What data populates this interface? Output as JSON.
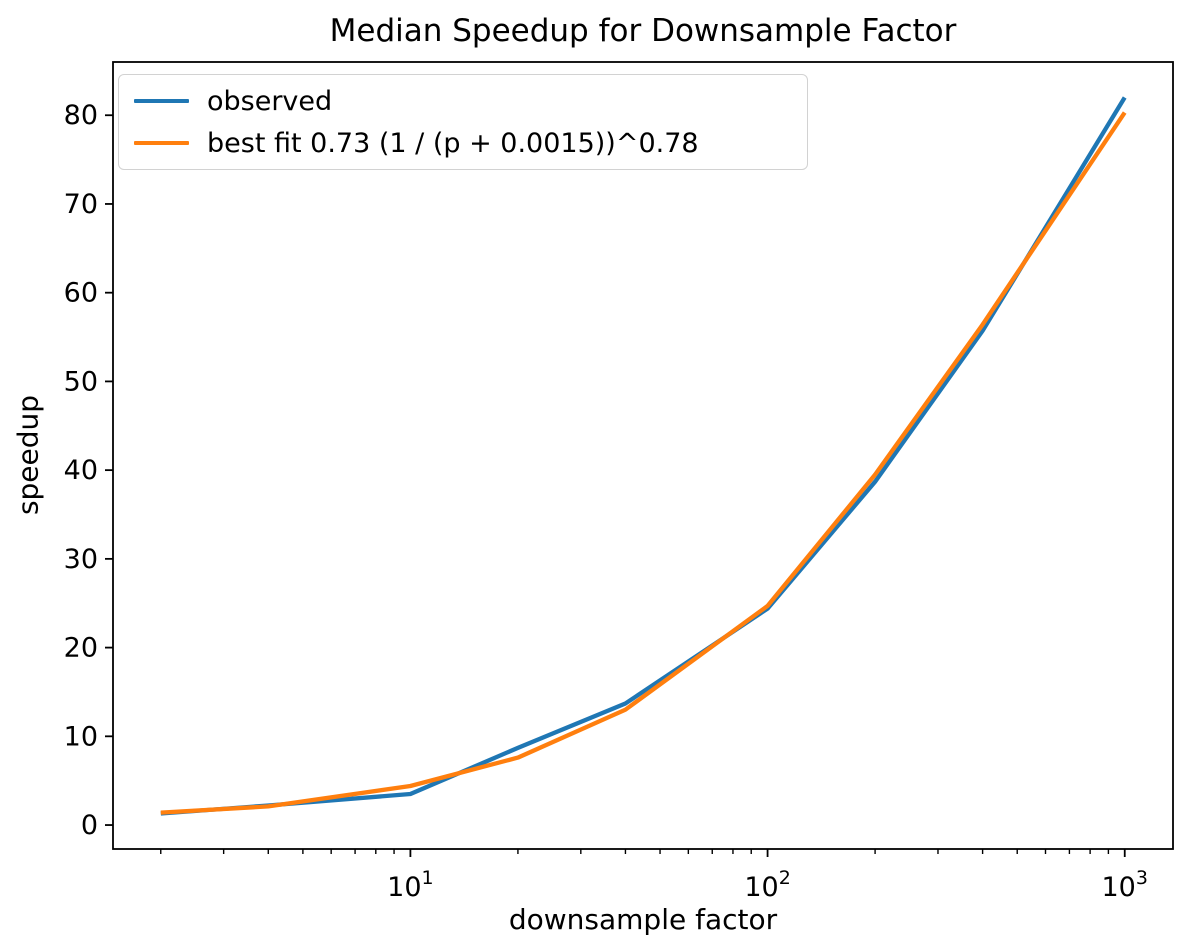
{
  "chart_data": {
    "type": "line",
    "title": "Median Speedup for Downsample Factor",
    "xlabel": "downsample factor",
    "ylabel": "speedup",
    "x_scale": "log",
    "grid": false,
    "legend_position": "upper left",
    "x": [
      2,
      4,
      10,
      20,
      40,
      100,
      200,
      400,
      1000
    ],
    "series": [
      {
        "name": "observed",
        "color": "#1f77b4",
        "values": [
          1.3,
          2.2,
          3.5,
          8.7,
          13.7,
          24.4,
          38.7,
          55.7,
          82.0
        ]
      },
      {
        "name": "best fit 0.73 (1 / (p + 0.0015))^0.78",
        "color": "#ff7f0e",
        "values": [
          1.4,
          2.1,
          4.4,
          7.6,
          13.0,
          24.7,
          39.5,
          56.4,
          80.3
        ]
      }
    ],
    "xlim": [
      1.47,
      1365
    ],
    "ylim": [
      -2.7,
      86
    ],
    "yticks": [
      0,
      10,
      20,
      30,
      40,
      50,
      60,
      70,
      80
    ],
    "xticks_major": [
      10,
      100,
      1000
    ],
    "xtick_labels": [
      "10^1",
      "10^2",
      "10^3"
    ]
  }
}
